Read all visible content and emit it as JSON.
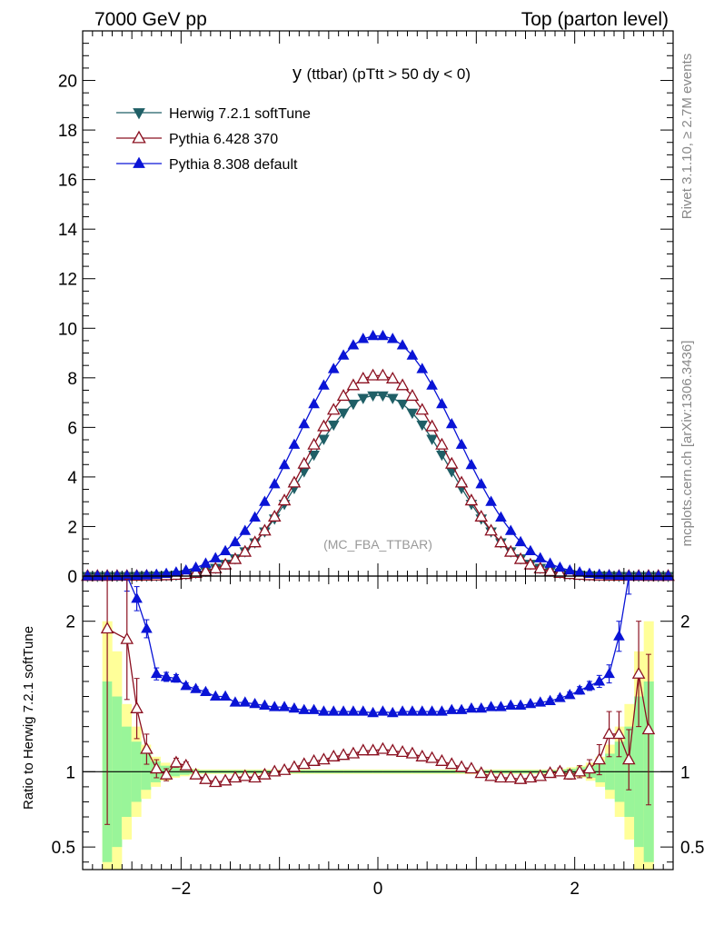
{
  "header": {
    "left": "7000 GeV pp",
    "right": "Top (parton level)"
  },
  "side_text": {
    "rivet": "Rivet 3.1.10, ≥ 2.7M events",
    "mcplots": "mcplots.cern.ch [arXiv:1306.3436]"
  },
  "colors": {
    "herwig": "#1f5f66",
    "pythia6": "#8b1020",
    "pythia8": "#0a14d6",
    "band_inner": "#99f599",
    "band_outer": "#ffff99"
  },
  "chart_data": [
    {
      "type": "line",
      "title": "y (ttbar) (pTtt > 50 dy < 0)",
      "title_main": "y",
      "title_rest": "(ttbar) (pTtt > 50 dy < 0)",
      "watermark": "(MC_FBA_TTBAR)",
      "xlim": [
        -3.0,
        3.0
      ],
      "ylim": [
        0,
        22
      ],
      "y_ticks": [
        0,
        2,
        4,
        6,
        8,
        10,
        12,
        14,
        16,
        18,
        20
      ],
      "y_tick_labels": [
        "0",
        "2",
        "4",
        "6",
        "8",
        "10",
        "12",
        "14",
        "16",
        "18",
        "20"
      ],
      "legend_position": "top-left",
      "series": [
        {
          "name": "Herwig 7.2.1 softTune",
          "key": "herwig",
          "marker": "triangle-down-filled",
          "peak": 7.3,
          "sigma": 0.72
        },
        {
          "name": "Pythia 6.428 370",
          "key": "pythia6",
          "marker": "triangle-up-open",
          "peak": 8.1,
          "sigma": 0.7
        },
        {
          "name": "Pythia 8.308 default",
          "key": "pythia8",
          "marker": "triangle-up-filled",
          "peak": 9.7,
          "sigma": 0.78
        }
      ],
      "x_centers_range": [
        -2.95,
        2.95
      ],
      "bin_width": 0.1
    },
    {
      "type": "line",
      "ylabel": "Ratio to Herwig 7.2.1 softTune",
      "xlim": [
        -3.0,
        3.0
      ],
      "ylim": [
        0.35,
        2.3
      ],
      "x_ticks": [
        -2,
        0,
        2
      ],
      "x_tick_labels": [
        "−2",
        "0",
        "2"
      ],
      "y_ticks": [
        0.5,
        1,
        2
      ],
      "y_tick_labels": [
        "0.5",
        "1",
        "2"
      ],
      "reference_line": 1,
      "band_inner_halfwidth": [
        0.6,
        0.5,
        0.3,
        0.2,
        0.12,
        0.07,
        0.04,
        0.03,
        0.02,
        0.015,
        0.01,
        0.01,
        0.01,
        0.01,
        0.01,
        0.01,
        0.01,
        0.01,
        0.01,
        0.01,
        0.01,
        0.01,
        0.01,
        0.01,
        0.01,
        0.01,
        0.01,
        0.01,
        0.01,
        0.01,
        0.01,
        0.01,
        0.01,
        0.01,
        0.01,
        0.01,
        0.01,
        0.01,
        0.01,
        0.01,
        0.01,
        0.01,
        0.01,
        0.01,
        0.01,
        0.01,
        0.01,
        0.015,
        0.02,
        0.03,
        0.04,
        0.07,
        0.12,
        0.2,
        0.3,
        0.5,
        0.6
      ],
      "band_outer_halfwidth": [
        1.0,
        0.8,
        0.45,
        0.3,
        0.18,
        0.1,
        0.06,
        0.04,
        0.03,
        0.02,
        0.015,
        0.015,
        0.015,
        0.015,
        0.015,
        0.015,
        0.015,
        0.015,
        0.015,
        0.015,
        0.015,
        0.015,
        0.015,
        0.015,
        0.015,
        0.015,
        0.015,
        0.015,
        0.015,
        0.015,
        0.015,
        0.015,
        0.015,
        0.015,
        0.015,
        0.015,
        0.015,
        0.015,
        0.015,
        0.015,
        0.015,
        0.015,
        0.015,
        0.015,
        0.015,
        0.015,
        0.015,
        0.02,
        0.03,
        0.04,
        0.06,
        0.1,
        0.18,
        0.3,
        0.45,
        0.8,
        1.0
      ],
      "band_x_range": [
        -2.8,
        2.8
      ],
      "pythia8_ratio": [
        [
          -2.55,
          2.3
        ],
        [
          -2.45,
          2.15
        ],
        [
          -2.35,
          1.95
        ],
        [
          -2.25,
          1.65
        ],
        [
          -2.15,
          1.63
        ],
        [
          -2.05,
          1.62
        ],
        [
          -1.95,
          1.57
        ],
        [
          -1.85,
          1.55
        ],
        [
          -1.75,
          1.53
        ],
        [
          -1.65,
          1.5
        ],
        [
          -1.55,
          1.5
        ],
        [
          -1.45,
          1.46
        ],
        [
          -1.35,
          1.46
        ],
        [
          -1.25,
          1.45
        ],
        [
          -1.15,
          1.44
        ],
        [
          -1.05,
          1.43
        ],
        [
          -0.95,
          1.43
        ],
        [
          -0.85,
          1.42
        ],
        [
          -0.75,
          1.41
        ],
        [
          -0.65,
          1.41
        ],
        [
          -0.55,
          1.4
        ],
        [
          -0.45,
          1.4
        ],
        [
          -0.35,
          1.4
        ],
        [
          -0.25,
          1.4
        ],
        [
          -0.15,
          1.4
        ],
        [
          -0.05,
          1.39
        ],
        [
          0.05,
          1.4
        ],
        [
          0.15,
          1.39
        ],
        [
          0.25,
          1.4
        ],
        [
          0.35,
          1.4
        ],
        [
          0.45,
          1.4
        ],
        [
          0.55,
          1.4
        ],
        [
          0.65,
          1.4
        ],
        [
          0.75,
          1.41
        ],
        [
          0.85,
          1.41
        ],
        [
          0.95,
          1.42
        ],
        [
          1.05,
          1.42
        ],
        [
          1.15,
          1.43
        ],
        [
          1.25,
          1.43
        ],
        [
          1.35,
          1.44
        ],
        [
          1.45,
          1.44
        ],
        [
          1.55,
          1.45
        ],
        [
          1.65,
          1.46
        ],
        [
          1.75,
          1.47
        ],
        [
          1.85,
          1.49
        ],
        [
          1.95,
          1.51
        ],
        [
          2.05,
          1.54
        ],
        [
          2.15,
          1.57
        ],
        [
          2.25,
          1.6
        ],
        [
          2.35,
          1.65
        ],
        [
          2.45,
          1.9
        ],
        [
          2.55,
          2.3
        ]
      ],
      "pythia8_err": [
        0.1,
        0.08,
        0.06,
        0.04,
        0.03,
        0.025,
        0.02,
        0.015,
        0.015,
        0.01,
        0.01,
        0.01,
        0.01,
        0.01,
        0.01,
        0.01,
        0.01,
        0.01,
        0.01,
        0.01,
        0.01,
        0.01,
        0.01,
        0.01,
        0.01,
        0.01,
        0.01,
        0.01,
        0.01,
        0.01,
        0.01,
        0.01,
        0.01,
        0.01,
        0.01,
        0.01,
        0.01,
        0.01,
        0.01,
        0.01,
        0.01,
        0.01,
        0.01,
        0.015,
        0.015,
        0.02,
        0.025,
        0.03,
        0.04,
        0.06,
        0.1,
        0.12
      ],
      "pythia6_ratio": [
        [
          -2.75,
          1.95
        ],
        [
          -2.55,
          1.88
        ],
        [
          -2.45,
          1.42
        ],
        [
          -2.35,
          1.15
        ],
        [
          -2.25,
          1.02
        ],
        [
          -2.15,
          0.98
        ],
        [
          -2.05,
          1.06
        ],
        [
          -1.95,
          1.04
        ],
        [
          -1.85,
          0.98
        ],
        [
          -1.75,
          0.95
        ],
        [
          -1.65,
          0.93
        ],
        [
          -1.55,
          0.94
        ],
        [
          -1.45,
          0.96
        ],
        [
          -1.35,
          0.97
        ],
        [
          -1.25,
          0.96
        ],
        [
          -1.15,
          0.98
        ],
        [
          -1.05,
          1.0
        ],
        [
          -0.95,
          1.01
        ],
        [
          -0.85,
          1.03
        ],
        [
          -0.75,
          1.05
        ],
        [
          -0.65,
          1.07
        ],
        [
          -0.55,
          1.08
        ],
        [
          -0.45,
          1.1
        ],
        [
          -0.35,
          1.11
        ],
        [
          -0.25,
          1.12
        ],
        [
          -0.15,
          1.14
        ],
        [
          -0.05,
          1.14
        ],
        [
          0.05,
          1.15
        ],
        [
          0.15,
          1.14
        ],
        [
          0.25,
          1.13
        ],
        [
          0.35,
          1.12
        ],
        [
          0.45,
          1.1
        ],
        [
          0.55,
          1.09
        ],
        [
          0.65,
          1.07
        ],
        [
          0.75,
          1.05
        ],
        [
          0.85,
          1.03
        ],
        [
          0.95,
          1.02
        ],
        [
          1.05,
          0.99
        ],
        [
          1.15,
          0.97
        ],
        [
          1.25,
          0.96
        ],
        [
          1.35,
          0.96
        ],
        [
          1.45,
          0.95
        ],
        [
          1.55,
          0.96
        ],
        [
          1.65,
          0.97
        ],
        [
          1.75,
          0.99
        ],
        [
          1.85,
          1.0
        ],
        [
          1.95,
          0.98
        ],
        [
          2.05,
          1.0
        ],
        [
          2.15,
          1.02
        ],
        [
          2.25,
          1.08
        ],
        [
          2.35,
          1.25
        ],
        [
          2.45,
          1.25
        ],
        [
          2.55,
          1.08
        ],
        [
          2.65,
          1.65
        ],
        [
          2.75,
          1.28
        ]
      ],
      "pythia6_err": [
        1.3,
        0.4,
        0.2,
        0.1,
        0.06,
        0.04,
        0.03,
        0.025,
        0.02,
        0.015,
        0.015,
        0.01,
        0.01,
        0.01,
        0.01,
        0.01,
        0.01,
        0.01,
        0.01,
        0.01,
        0.01,
        0.01,
        0.01,
        0.01,
        0.01,
        0.01,
        0.01,
        0.01,
        0.01,
        0.01,
        0.01,
        0.01,
        0.01,
        0.01,
        0.01,
        0.01,
        0.01,
        0.01,
        0.01,
        0.01,
        0.01,
        0.01,
        0.015,
        0.015,
        0.02,
        0.025,
        0.03,
        0.04,
        0.06,
        0.1,
        0.15,
        0.15,
        0.2,
        0.35,
        0.5
      ]
    }
  ]
}
